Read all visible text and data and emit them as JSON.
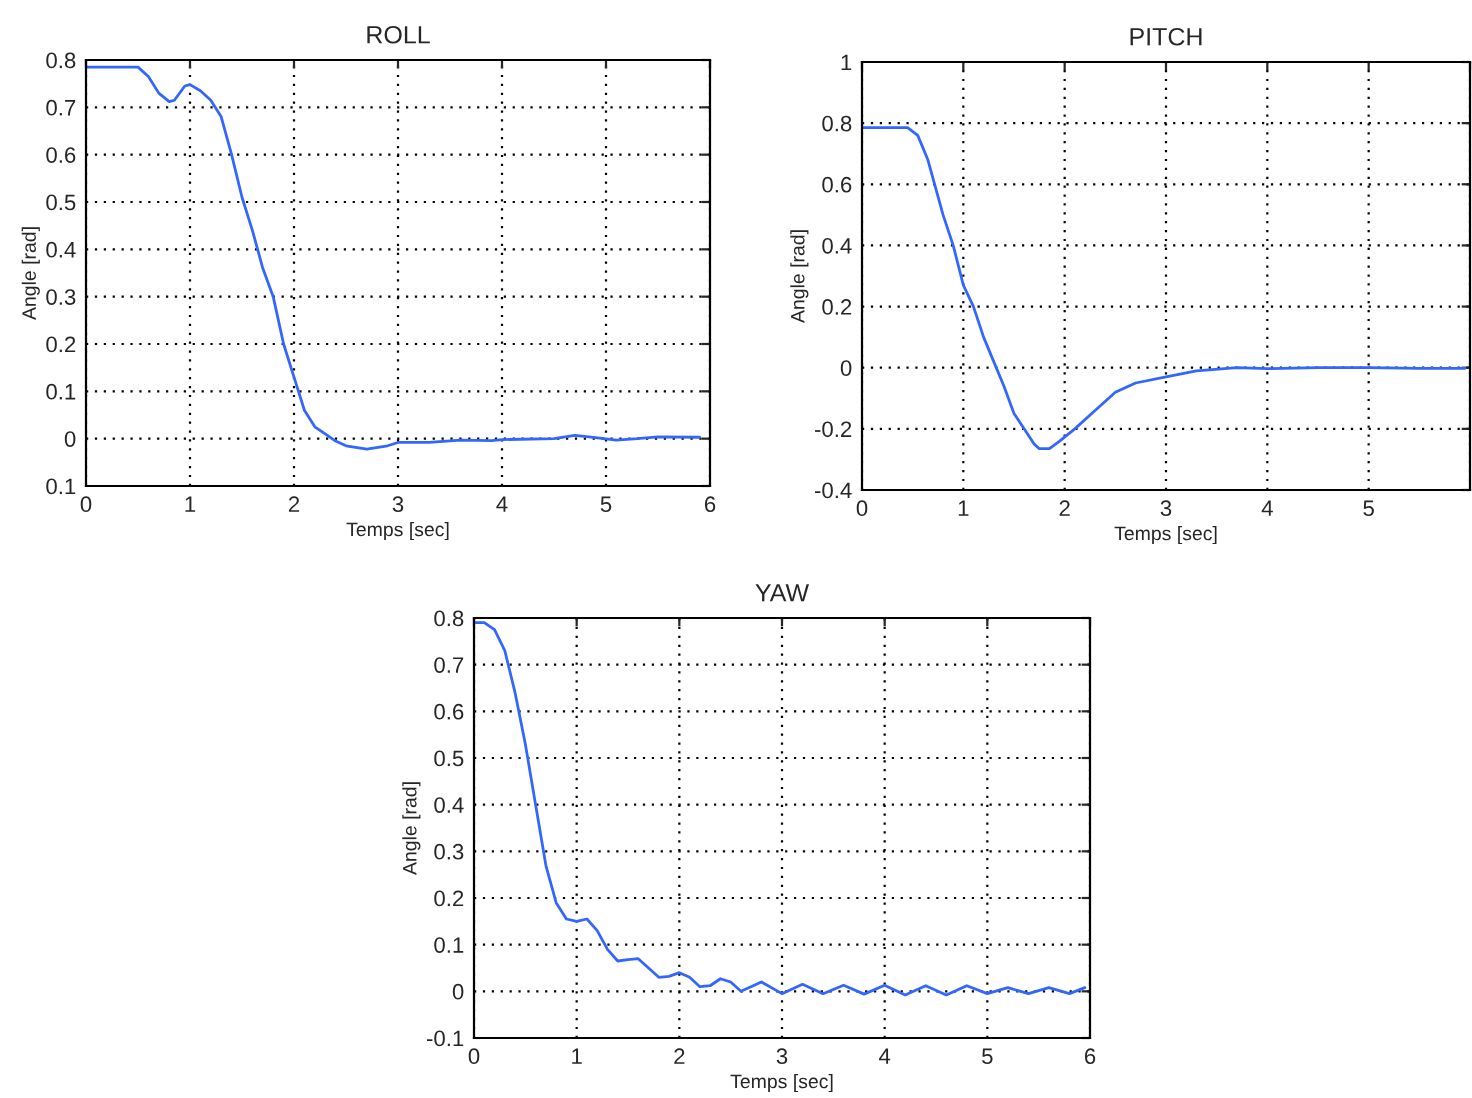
{
  "chart_data": [
    {
      "type": "line",
      "title": "ROLL",
      "xlabel": "Temps [sec]",
      "ylabel": "Angle [rad]",
      "grid": true,
      "xlim": [
        0,
        6
      ],
      "xticks": [
        0,
        1,
        2,
        3,
        4,
        5,
        6
      ],
      "ylim": [
        -0.1,
        0.8
      ],
      "yticks": [
        {
          "value": -0.1,
          "label": "0.1"
        },
        0,
        0.1,
        0.2,
        0.3,
        0.4,
        0.5,
        0.6,
        0.7,
        0.8
      ],
      "series": [
        {
          "color": "#3366ff",
          "x": [
            0,
            0.5,
            0.6,
            0.7,
            0.8,
            0.85,
            0.95,
            1.0,
            1.1,
            1.2,
            1.3,
            1.4,
            1.5,
            1.6,
            1.7,
            1.8,
            1.9,
            2.0,
            2.1,
            2.2,
            2.3,
            2.4,
            2.5,
            2.7,
            2.9,
            3.0,
            3.3,
            3.6,
            3.9,
            4.0,
            4.5,
            4.7,
            4.9,
            5.1,
            5.3,
            5.5,
            5.9
          ],
          "values": [
            0.785,
            0.785,
            0.765,
            0.73,
            0.712,
            0.715,
            0.745,
            0.748,
            0.735,
            0.715,
            0.68,
            0.6,
            0.51,
            0.44,
            0.36,
            0.3,
            0.2,
            0.13,
            0.06,
            0.025,
            0.01,
            -0.005,
            -0.015,
            -0.022,
            -0.015,
            -0.008,
            -0.008,
            -0.003,
            -0.004,
            -0.002,
            0.0,
            0.007,
            0.002,
            -0.003,
            0.0,
            0.004,
            0.003
          ]
        }
      ]
    },
    {
      "type": "line",
      "title": "PITCH",
      "xlabel": "Temps [sec]",
      "ylabel": "Angle [rad]",
      "grid": true,
      "xlim": [
        0,
        6
      ],
      "xticks": [
        0,
        1,
        2,
        3,
        4,
        5,
        {
          "value": 6,
          "label": null
        }
      ],
      "ylim": [
        -0.4,
        1
      ],
      "yticks": [
        -0.4,
        -0.2,
        0,
        0.2,
        0.4,
        0.6,
        0.8,
        1
      ],
      "series": [
        {
          "color": "#3366ff",
          "x": [
            0,
            0.45,
            0.55,
            0.65,
            0.8,
            0.9,
            1.0,
            1.1,
            1.2,
            1.3,
            1.4,
            1.5,
            1.6,
            1.7,
            1.75,
            1.85,
            1.95,
            2.1,
            2.3,
            2.5,
            2.7,
            3.0,
            3.3,
            3.7,
            4.0,
            4.5,
            5.0,
            5.5,
            5.95
          ],
          "values": [
            0.785,
            0.785,
            0.76,
            0.68,
            0.5,
            0.4,
            0.27,
            0.2,
            0.1,
            0.02,
            -0.06,
            -0.15,
            -0.2,
            -0.25,
            -0.265,
            -0.265,
            -0.24,
            -0.2,
            -0.14,
            -0.08,
            -0.05,
            -0.03,
            -0.01,
            0.0,
            -0.003,
            0.0,
            0.0,
            -0.002,
            -0.002
          ]
        }
      ]
    },
    {
      "type": "line",
      "title": "YAW",
      "xlabel": "Temps [sec]",
      "ylabel": "Angle [rad]",
      "grid": true,
      "xlim": [
        0,
        6
      ],
      "xticks": [
        0,
        1,
        2,
        3,
        4,
        5,
        6
      ],
      "ylim": [
        -0.1,
        0.8
      ],
      "yticks": [
        -0.1,
        0,
        0.1,
        0.2,
        0.3,
        0.4,
        0.5,
        0.6,
        0.7,
        0.8
      ],
      "series": [
        {
          "color": "#3366ff",
          "x": [
            0,
            0.1,
            0.2,
            0.3,
            0.4,
            0.5,
            0.6,
            0.7,
            0.8,
            0.9,
            1.0,
            1.1,
            1.2,
            1.3,
            1.4,
            1.5,
            1.6,
            1.7,
            1.8,
            1.9,
            2.0,
            2.1,
            2.2,
            2.3,
            2.4,
            2.5,
            2.6,
            2.8,
            3.0,
            3.2,
            3.4,
            3.6,
            3.8,
            4.0,
            4.2,
            4.4,
            4.6,
            4.8,
            5.0,
            5.2,
            5.4,
            5.6,
            5.8,
            5.95
          ],
          "values": [
            0.79,
            0.79,
            0.775,
            0.73,
            0.64,
            0.53,
            0.4,
            0.27,
            0.19,
            0.155,
            0.15,
            0.155,
            0.13,
            0.09,
            0.065,
            0.068,
            0.07,
            0.05,
            0.03,
            0.032,
            0.04,
            0.03,
            0.01,
            0.012,
            0.027,
            0.02,
            0.0,
            0.02,
            -0.005,
            0.015,
            -0.005,
            0.013,
            -0.006,
            0.013,
            -0.008,
            0.012,
            -0.008,
            0.012,
            -0.005,
            0.008,
            -0.005,
            0.008,
            -0.005,
            0.008
          ]
        }
      ]
    }
  ]
}
